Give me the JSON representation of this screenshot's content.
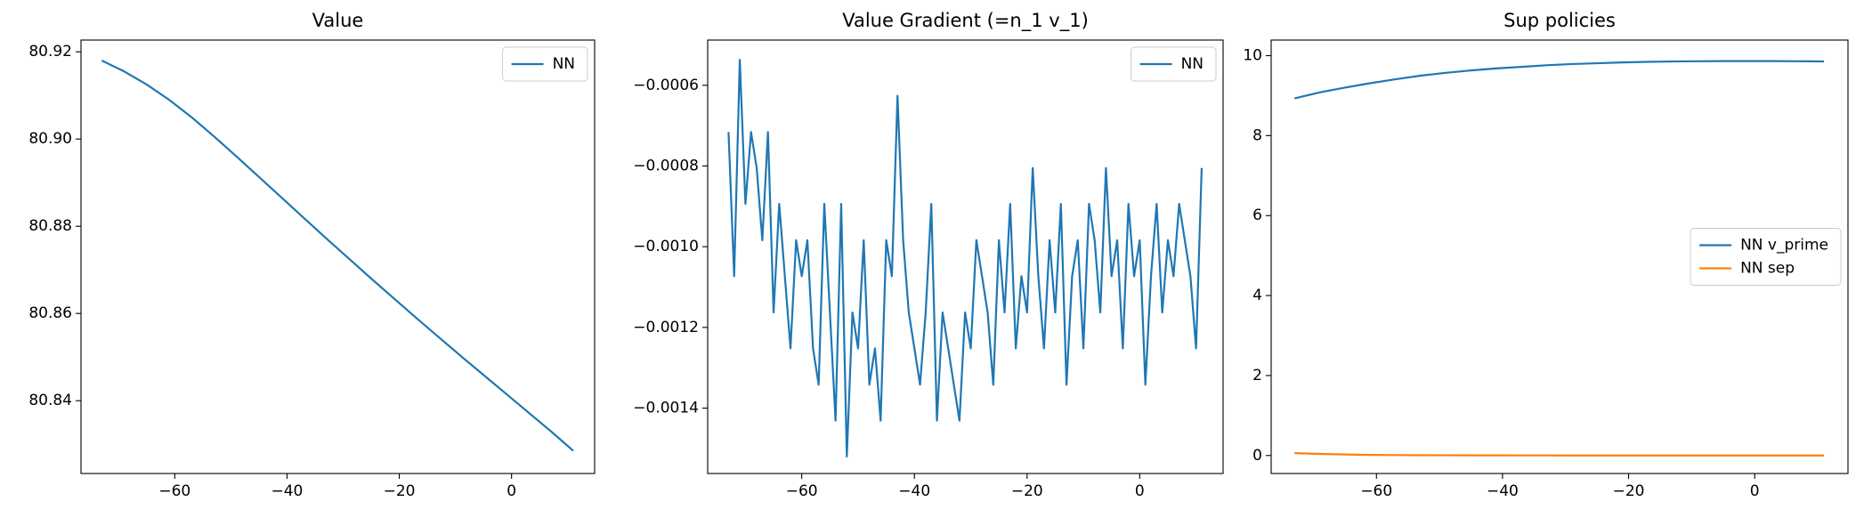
{
  "chart_data": [
    {
      "type": "line",
      "title": "Value",
      "x": [
        -73,
        -69,
        -65,
        -61,
        -57,
        -53,
        -49,
        -45,
        -41,
        -37,
        -33,
        -29,
        -25,
        -21,
        -17,
        -13,
        -9,
        -5,
        -1,
        3,
        7,
        11
      ],
      "series": [
        {
          "name": "NN",
          "color": "#1f77b4",
          "values": [
            80.918,
            80.9155,
            80.9125,
            80.909,
            80.905,
            80.9006,
            80.896,
            80.8913,
            80.8866,
            80.8819,
            80.8772,
            80.8726,
            80.868,
            80.8635,
            80.859,
            80.8546,
            80.8502,
            80.8459,
            80.8416,
            80.8373,
            80.833,
            80.8285
          ]
        }
      ],
      "xlim": [
        -76.7,
        14.8
      ],
      "xticks": [
        {
          "value": -60,
          "label": "−60"
        },
        {
          "value": -40,
          "label": "−40"
        },
        {
          "value": -20,
          "label": "−20"
        },
        0
      ],
      "ylim": [
        80.8233,
        80.9227
      ],
      "yticks": [
        80.84,
        80.86,
        80.88,
        {
          "value": 80.9,
          "label": "80.90"
        },
        80.92
      ],
      "legend": "upper right"
    },
    {
      "type": "line",
      "title": "Value Gradient (=n_1 v_1)",
      "x": [
        -73,
        -72,
        -71,
        -70,
        -69,
        -68,
        -67,
        -66,
        -65,
        -64,
        -63,
        -62,
        -61,
        -60,
        -59,
        -58,
        -57,
        -56,
        -55,
        -54,
        -53,
        -52,
        -51,
        -50,
        -49,
        -48,
        -47,
        -46,
        -45,
        -44,
        -43,
        -42,
        -41,
        -40,
        -39,
        -38,
        -37,
        -36,
        -35,
        -34,
        -33,
        -32,
        -31,
        -30,
        -29,
        -28,
        -27,
        -26,
        -25,
        -24,
        -23,
        -22,
        -21,
        -20,
        -19,
        -18,
        -17,
        -16,
        -15,
        -14,
        -13,
        -12,
        -11,
        -10,
        -9,
        -8,
        -7,
        -6,
        -5,
        -4,
        -3,
        -2,
        -1,
        0,
        1,
        2,
        3,
        4,
        5,
        6,
        7,
        8,
        9,
        10,
        11
      ],
      "series": [
        {
          "name": "NN",
          "color": "#1f77b4",
          "values": [
            -0.000716,
            -0.001073,
            -0.000537,
            -0.000894,
            -0.000716,
            -0.000805,
            -0.000984,
            -0.000716,
            -0.001163,
            -0.000894,
            -0.001073,
            -0.001252,
            -0.000984,
            -0.001073,
            -0.000984,
            -0.001252,
            -0.001342,
            -0.000894,
            -0.001163,
            -0.001431,
            -0.000894,
            -0.00152,
            -0.001163,
            -0.001252,
            -0.000984,
            -0.001342,
            -0.001252,
            -0.001431,
            -0.000984,
            -0.001073,
            -0.000626,
            -0.000984,
            -0.001163,
            -0.001252,
            -0.001342,
            -0.001163,
            -0.000894,
            -0.001431,
            -0.001163,
            -0.001252,
            -0.001342,
            -0.001431,
            -0.001163,
            -0.001252,
            -0.000984,
            -0.001073,
            -0.001163,
            -0.001342,
            -0.000984,
            -0.001163,
            -0.000894,
            -0.001252,
            -0.001073,
            -0.001163,
            -0.000805,
            -0.001073,
            -0.001252,
            -0.000984,
            -0.001163,
            -0.000894,
            -0.001342,
            -0.001073,
            -0.000984,
            -0.001252,
            -0.000894,
            -0.000984,
            -0.001163,
            -0.000805,
            -0.001073,
            -0.000984,
            -0.001252,
            -0.000894,
            -0.001073,
            -0.000984,
            -0.001342,
            -0.001073,
            -0.000894,
            -0.001163,
            -0.000984,
            -0.001073,
            -0.000894,
            -0.000984,
            -0.001073,
            -0.001252,
            -0.000805
          ]
        }
      ],
      "xlim": [
        -76.7,
        14.8
      ],
      "xticks": [
        {
          "value": -60,
          "label": "−60"
        },
        {
          "value": -40,
          "label": "−40"
        },
        {
          "value": -20,
          "label": "−20"
        },
        0
      ],
      "ylim": [
        -0.001562,
        -0.000488
      ],
      "yticks": [
        {
          "value": -0.0014,
          "label": "−0.0014"
        },
        {
          "value": -0.0012,
          "label": "−0.0012"
        },
        {
          "value": -0.001,
          "label": "−0.0010"
        },
        {
          "value": -0.0008,
          "label": "−0.0008"
        },
        {
          "value": -0.0006,
          "label": "−0.0006"
        }
      ],
      "legend": "upper right"
    },
    {
      "type": "line",
      "title": "Sup policies",
      "x": [
        -73,
        -69,
        -65,
        -61,
        -57,
        -53,
        -49,
        -45,
        -41,
        -37,
        -33,
        -29,
        -25,
        -21,
        -17,
        -13,
        -9,
        -5,
        -1,
        3,
        7,
        11
      ],
      "series": [
        {
          "name": "NN v_prime",
          "color": "#1f77b4",
          "values": [
            8.93,
            9.08,
            9.2,
            9.31,
            9.41,
            9.5,
            9.57,
            9.63,
            9.68,
            9.72,
            9.76,
            9.79,
            9.81,
            9.83,
            9.845,
            9.855,
            9.86,
            9.865,
            9.865,
            9.865,
            9.86,
            9.855
          ]
        },
        {
          "name": "NN sep",
          "color": "#ff7f0e",
          "values": [
            0.06,
            0.04,
            0.025,
            0.015,
            0.01,
            0.007,
            0.005,
            0.004,
            0.003,
            0.002,
            0.002,
            0.001,
            0.001,
            0.001,
            0.001,
            0.001,
            0.001,
            0.001,
            0.001,
            0.001,
            0.001,
            0.001
          ]
        }
      ],
      "xlim": [
        -76.7,
        14.8
      ],
      "xticks": [
        {
          "value": -60,
          "label": "−60"
        },
        {
          "value": -40,
          "label": "−40"
        },
        {
          "value": -20,
          "label": "−20"
        },
        0
      ],
      "ylim": [
        -0.45,
        10.39
      ],
      "yticks": [
        0,
        2,
        4,
        6,
        8,
        10
      ],
      "legend": "center right"
    }
  ]
}
